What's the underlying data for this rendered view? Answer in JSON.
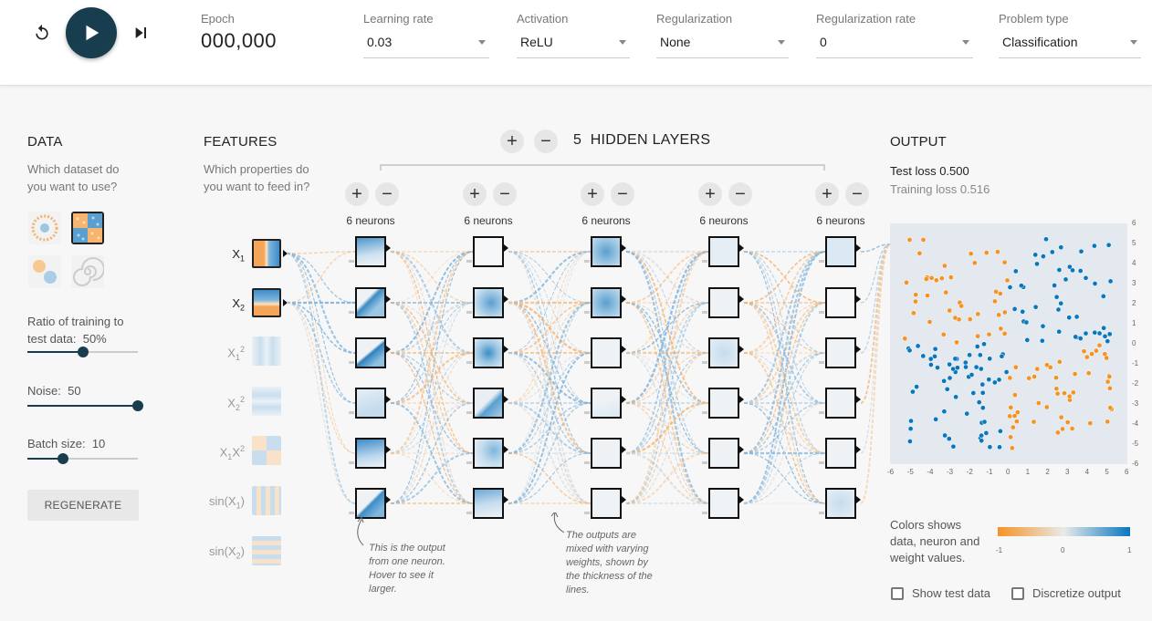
{
  "header": {
    "epoch_label": "Epoch",
    "epoch_value": "000,000",
    "learning_rate": {
      "label": "Learning rate",
      "value": "0.03"
    },
    "activation": {
      "label": "Activation",
      "value": "ReLU"
    },
    "regularization": {
      "label": "Regularization",
      "value": "None"
    },
    "regularization_rate": {
      "label": "Regularization rate",
      "value": "0"
    },
    "problem_type": {
      "label": "Problem type",
      "value": "Classification"
    },
    "icons": {
      "reset": "reset-icon",
      "play": "play-icon",
      "step": "step-forward-icon"
    }
  },
  "data_panel": {
    "title": "DATA",
    "subtitle": "Which dataset do you want to use?",
    "ratio_label": "Ratio of training to test data:",
    "ratio_value": "50%",
    "ratio_fraction": 0.5,
    "noise_label": "Noise:",
    "noise_value": "50",
    "noise_fraction": 1.0,
    "batch_label": "Batch size:",
    "batch_value": "10",
    "batch_fraction": 0.3,
    "regenerate_label": "REGENERATE"
  },
  "features": {
    "title": "FEATURES",
    "subtitle": "Which properties do you want to feed in?",
    "items": [
      {
        "base": "X",
        "sub": "1",
        "suffix": "",
        "sub2": "",
        "active": true
      },
      {
        "base": "X",
        "sub": "2",
        "suffix": "",
        "sub2": "",
        "active": true
      },
      {
        "base": "X",
        "sub": "1",
        "suffix": "",
        "sub2": "2",
        "active": false
      },
      {
        "base": "X",
        "sub": "2",
        "suffix": "",
        "sub2": "2",
        "active": false
      },
      {
        "base": "X",
        "sub": "1",
        "suffix": "X",
        "sub2": "2",
        "active": false
      },
      {
        "base": "sin(X",
        "sub": "1",
        "suffix": ")",
        "sub2": "",
        "active": false
      },
      {
        "base": "sin(X",
        "sub": "2",
        "suffix": ")",
        "sub2": "",
        "active": false
      }
    ]
  },
  "network": {
    "layers_count": "5",
    "layers_label": "HIDDEN LAYERS",
    "add_symbol": "+",
    "remove_symbol": "−",
    "layers": [
      {
        "neurons_label": "6 neurons"
      },
      {
        "neurons_label": "6 neurons"
      },
      {
        "neurons_label": "6 neurons"
      },
      {
        "neurons_label": "6 neurons"
      },
      {
        "neurons_label": "6 neurons"
      }
    ],
    "annotation_neuron": "This is the output from one neuron. Hover to see it larger.",
    "annotation_weights": "The outputs are mixed with varying weights, shown by the thickness of the lines."
  },
  "output": {
    "title": "OUTPUT",
    "test_loss_label": "Test loss",
    "test_loss_value": "0.500",
    "training_loss_label": "Training loss",
    "training_loss_value": "0.516",
    "axis_ticks": [
      "-6",
      "-5",
      "-4",
      "-3",
      "-2",
      "-1",
      "0",
      "1",
      "2",
      "3",
      "4",
      "5",
      "6"
    ],
    "legend_text": "Colors shows data, neuron and weight values.",
    "legend_ticks": [
      "-1",
      "0",
      "1"
    ],
    "show_test_label": "Show test data",
    "discretize_label": "Discretize output"
  },
  "colors": {
    "orange": "#f59322",
    "blue": "#0877bd",
    "dark": "#183d4e",
    "neutral": "#e3e9ee"
  }
}
